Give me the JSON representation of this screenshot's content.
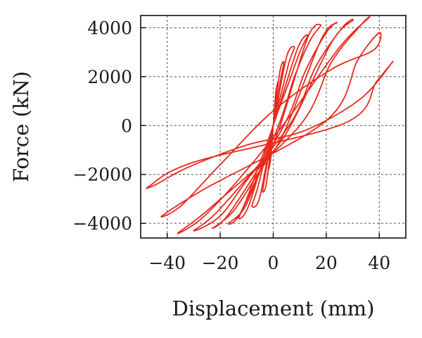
{
  "chart_data": {
    "type": "line",
    "xlabel": "Displacement (mm)",
    "ylabel": "Force (kN)",
    "xlim": [
      -50,
      50
    ],
    "ylim": [
      -4600,
      4500
    ],
    "xticks": [
      -40,
      -20,
      0,
      20,
      40
    ],
    "yticks": [
      -4000,
      -2000,
      0,
      2000,
      4000
    ],
    "xtick_labels": [
      "−40",
      "−20",
      "0",
      "20",
      "40"
    ],
    "ytick_labels": [
      "−4000",
      "−2000",
      "0",
      "2000",
      "4000"
    ],
    "grid": true,
    "legend": "none",
    "color": "#e8291c",
    "series": [
      {
        "x": [
          0,
          0.9,
          1.3,
          1.8,
          0.9,
          0,
          -0.9,
          -1.3,
          -1.8,
          -0.9,
          0
        ],
        "y": [
          0,
          800,
          1400,
          1800,
          1300,
          0,
          -800,
          -1400,
          -1800,
          -1300,
          0
        ]
      },
      {
        "x": [
          0,
          1.5,
          3,
          4,
          2.5,
          0,
          -1.5,
          -3,
          -4,
          -2.5,
          0
        ],
        "y": [
          0,
          1000,
          2000,
          2600,
          2200,
          0,
          -1000,
          -2000,
          -2700,
          -2300,
          0
        ]
      },
      {
        "x": [
          0,
          3,
          6,
          8,
          5,
          0,
          -3,
          -6,
          -8,
          -5,
          0
        ],
        "y": [
          0,
          1300,
          2600,
          3200,
          2800,
          0,
          -1300,
          -2600,
          -3300,
          -2900,
          0
        ]
      },
      {
        "x": [
          0,
          6,
          10,
          13,
          9,
          0,
          -6,
          -10,
          -13,
          -9,
          0
        ],
        "y": [
          0,
          1800,
          3000,
          3700,
          3100,
          0,
          -1800,
          -3000,
          -3800,
          -3200,
          0
        ]
      },
      {
        "x": [
          2,
          8,
          14,
          18,
          13,
          2,
          -5,
          -11,
          -17,
          -12,
          2
        ],
        "y": [
          0,
          2000,
          3500,
          4100,
          3600,
          -200,
          -1900,
          -3400,
          -4000,
          -3500,
          0
        ]
      },
      {
        "x": [
          4,
          12,
          20,
          24,
          18,
          4,
          -6,
          -15,
          -23,
          -16,
          4
        ],
        "y": [
          0,
          2200,
          3800,
          4200,
          3500,
          -300,
          -2000,
          -3500,
          -4200,
          -3500,
          0
        ]
      },
      {
        "x": [
          6,
          16,
          26,
          30,
          22,
          5,
          -9,
          -20,
          -30,
          -20,
          6
        ],
        "y": [
          0,
          2400,
          4000,
          4300,
          3400,
          -300,
          -2100,
          -3700,
          -4300,
          -3400,
          0
        ]
      },
      {
        "x": [
          10,
          22,
          33,
          36,
          25,
          5,
          -13,
          -27,
          -36,
          -23,
          10
        ],
        "y": [
          0,
          2600,
          4100,
          4400,
          3200,
          200,
          -2200,
          -3800,
          -4400,
          -3300,
          0
        ]
      },
      {
        "x": [
          20,
          32,
          40,
          38,
          22,
          0,
          -20,
          -35,
          -42,
          -26,
          20
        ],
        "y": [
          200,
          2700,
          3800,
          3100,
          2300,
          600,
          -1600,
          -3300,
          -3700,
          -2600,
          200
        ]
      },
      {
        "x": [
          27,
          39,
          45,
          33,
          12,
          -10,
          -32,
          -44,
          -47,
          -30,
          27
        ],
        "y": [
          100,
          1800,
          2600,
          1100,
          -200,
          -800,
          -1700,
          -2400,
          -2500,
          -1500,
          100
        ]
      }
    ]
  }
}
